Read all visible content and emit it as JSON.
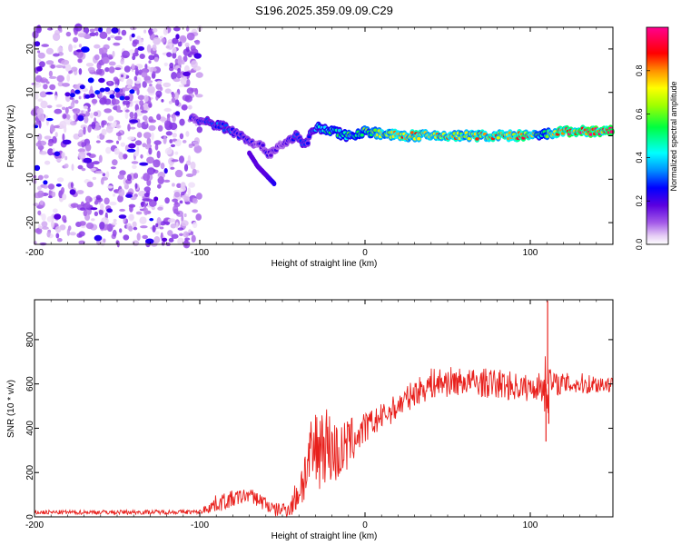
{
  "title": "S196.2025.359.09.09.C29",
  "colors": {
    "snr_line": "#e8201c",
    "palette": [
      "#ffffff",
      "#d9b3f2",
      "#a35ae8",
      "#5a00e0",
      "#0000ff",
      "#00ffff",
      "#00ff00",
      "#ffff00",
      "#ff8000",
      "#ff0000",
      "#ff00a0"
    ]
  },
  "chart_data": [
    {
      "type": "heatmap",
      "xlabel": "Height of straight line (km)",
      "ylabel": "Frequency (Hz)",
      "xlim": [
        -200,
        150
      ],
      "ylim": [
        -25,
        25
      ],
      "xticks": [
        -200,
        -100,
        0,
        100
      ],
      "xtick_labels": [
        "-200",
        "-100",
        "0",
        "100"
      ],
      "yticks": [
        -20,
        -10,
        0,
        10,
        20
      ],
      "ytick_labels": [
        "-20",
        "-10",
        "0",
        "10",
        "20"
      ],
      "colorbar": {
        "label": "Normalized spectral amplitude",
        "range": [
          0,
          1
        ],
        "ticks": [
          0.0,
          0.2,
          0.4,
          0.6,
          0.8
        ],
        "tick_labels": [
          "0.0",
          "0.2",
          "0.4",
          "0.6",
          "0.8"
        ]
      },
      "ridge": {
        "x": [
          -105,
          -95,
          -85,
          -75,
          -65,
          -58,
          -50,
          -42,
          -36,
          -30,
          -20,
          -10,
          0,
          20,
          40,
          60,
          80,
          100,
          105,
          120,
          150
        ],
        "freq": [
          4,
          3,
          2,
          0,
          -2,
          -4,
          -2,
          0,
          -2,
          2,
          1,
          0,
          1,
          0,
          0,
          0,
          0,
          0,
          0,
          1,
          1
        ],
        "amplitude": [
          0.25,
          0.3,
          0.35,
          0.3,
          0.2,
          0.25,
          0.2,
          0.3,
          0.3,
          0.4,
          0.5,
          0.55,
          0.6,
          0.8,
          0.8,
          0.75,
          0.8,
          0.85,
          0.5,
          0.9,
          0.95
        ]
      },
      "branch": {
        "x": [
          -70,
          -65,
          -60,
          -55
        ],
        "freq": [
          -4,
          -7,
          -9,
          -11
        ],
        "amplitude": [
          0.2,
          0.2,
          0.2,
          0.25
        ]
      },
      "noise_region": {
        "xmin": -200,
        "xmax": -100,
        "level": 0.12
      }
    },
    {
      "type": "line",
      "xlabel": "Height of straight line (km)",
      "ylabel": "SNR (10 * v/v)",
      "xlim": [
        -200,
        150
      ],
      "ylim": [
        0,
        980
      ],
      "xticks": [
        -200,
        -100,
        0,
        100
      ],
      "xtick_labels": [
        "-200",
        "-100",
        "0",
        "100"
      ],
      "yticks": [
        0,
        200,
        400,
        600,
        800
      ],
      "ytick_labels": [
        "0",
        "200",
        "400",
        "600",
        "800"
      ],
      "series": [
        {
          "name": "SNR",
          "envelope_x": [
            -200,
            -100,
            -90,
            -80,
            -70,
            -60,
            -55,
            -45,
            -40,
            -35,
            -30,
            -25,
            -20,
            -15,
            -10,
            0,
            10,
            20,
            30,
            40,
            50,
            60,
            80,
            100,
            105,
            110,
            115,
            130,
            150
          ],
          "envelope_mean": [
            20,
            22,
            60,
            80,
            100,
            60,
            30,
            40,
            120,
            220,
            300,
            350,
            300,
            280,
            330,
            400,
            450,
            500,
            560,
            600,
            610,
            610,
            600,
            580,
            590,
            600,
            600,
            600,
            600
          ],
          "envelope_spread": [
            10,
            10,
            40,
            40,
            30,
            40,
            30,
            40,
            100,
            150,
            200,
            200,
            160,
            140,
            120,
            70,
            60,
            60,
            60,
            70,
            70,
            60,
            70,
            60,
            60,
            150,
            50,
            50,
            40
          ],
          "spikes": [
            {
              "x": 110.5,
              "y": 975
            },
            {
              "x": 109.5,
              "y": 340
            },
            {
              "x": 111.2,
              "y": 420
            }
          ]
        }
      ]
    }
  ]
}
